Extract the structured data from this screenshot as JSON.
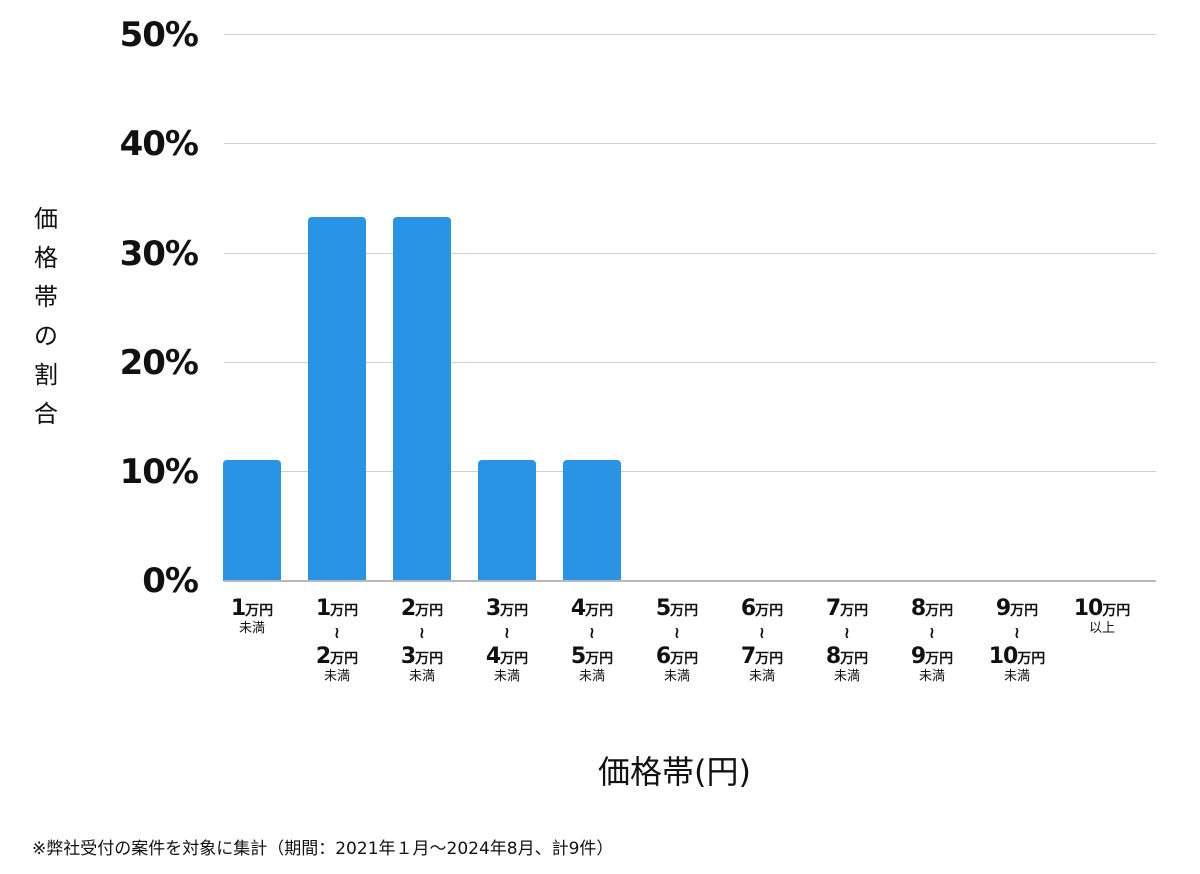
{
  "chart_data": {
    "type": "bar",
    "title": "",
    "xlabel": "価格帯(円)",
    "ylabel": "価格帯の割合",
    "ylim": [
      0,
      50
    ],
    "y_ticks": [
      "0%",
      "10%",
      "20%",
      "30%",
      "40%",
      "50%"
    ],
    "grid": true,
    "bar_color": "#2894e3",
    "categories": [
      "1万円未満",
      "1万円〜2万円未満",
      "2万円〜3万円未満",
      "3万円〜4万円未満",
      "4万円〜5万円未満",
      "5万円〜6万円未満",
      "6万円〜7万円未満",
      "7万円〜8万円未満",
      "8万円〜9万円未満",
      "9万円〜10万円未満",
      "10万円以上"
    ],
    "values": [
      11.1,
      33.3,
      33.3,
      11.1,
      11.1,
      0,
      0,
      0,
      0,
      0,
      0
    ],
    "counts": [
      1,
      3,
      3,
      1,
      1,
      0,
      0,
      0,
      0,
      0,
      0
    ]
  },
  "axis": {
    "y_ticks": [
      "50%",
      "40%",
      "30%",
      "20%",
      "10%",
      "0%"
    ],
    "ylabel_chars": [
      "価",
      "格",
      "帯",
      "の",
      "割",
      "合"
    ],
    "xlabel": "価格帯(円)"
  },
  "x_categories": [
    {
      "from": "1",
      "to": "",
      "suffix": "未満"
    },
    {
      "from": "1",
      "to": "2",
      "suffix": "未満"
    },
    {
      "from": "2",
      "to": "3",
      "suffix": "未満"
    },
    {
      "from": "3",
      "to": "4",
      "suffix": "未満"
    },
    {
      "from": "4",
      "to": "5",
      "suffix": "未満"
    },
    {
      "from": "5",
      "to": "6",
      "suffix": "未満"
    },
    {
      "from": "6",
      "to": "7",
      "suffix": "未満"
    },
    {
      "from": "7",
      "to": "8",
      "suffix": "未満"
    },
    {
      "from": "8",
      "to": "9",
      "suffix": "未満"
    },
    {
      "from": "9",
      "to": "10",
      "suffix": "未満"
    },
    {
      "from": "10",
      "to": "",
      "suffix": "以上"
    }
  ],
  "unit": "万円",
  "tilde": "〜",
  "footnote": "※弊社受付の案件を対象に集計（期間：2021年１月〜2024年8月、計9件）"
}
